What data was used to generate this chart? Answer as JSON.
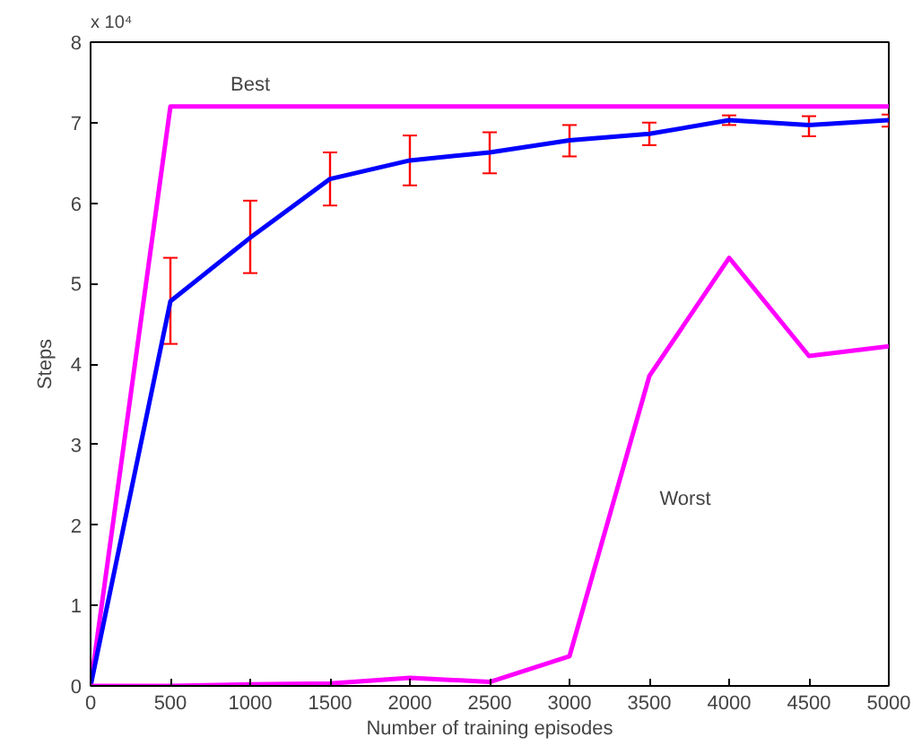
{
  "chart_data": {
    "type": "line",
    "xlabel": "Number of training episodes",
    "ylabel": "Steps",
    "x": [
      0,
      500,
      1000,
      1500,
      2000,
      2500,
      3000,
      3500,
      4000,
      4500,
      5000
    ],
    "series": [
      {
        "name": "Best",
        "color": "#ff00ff",
        "values": [
          0,
          7.2,
          7.2,
          7.2,
          7.2,
          7.2,
          7.2,
          7.2,
          7.2,
          7.2,
          7.2
        ]
      },
      {
        "color": "#0000ff",
        "values": [
          0,
          4.78,
          5.57,
          6.3,
          6.53,
          6.63,
          6.78,
          6.86,
          7.03,
          6.97,
          7.03
        ],
        "errors": [
          null,
          [
            4.25,
            5.32
          ],
          [
            5.13,
            6.03
          ],
          [
            5.97,
            6.63
          ],
          [
            6.22,
            6.84
          ],
          [
            6.37,
            6.88
          ],
          [
            6.58,
            6.97
          ],
          [
            6.72,
            7.0
          ],
          [
            6.97,
            7.09
          ],
          [
            6.83,
            7.08
          ],
          [
            6.95,
            7.1
          ]
        ]
      },
      {
        "name": "Worst",
        "color": "#ff00ff",
        "values": [
          0,
          0,
          0.02,
          0.03,
          0.1,
          0.05,
          0.37,
          3.85,
          5.32,
          4.1,
          4.22
        ]
      }
    ],
    "annotations": [
      "x 10⁴"
    ],
    "xlim": [
      0,
      5000
    ],
    "xticks": [
      0,
      500,
      1000,
      1500,
      2000,
      2500,
      3000,
      3500,
      4000,
      4500,
      5000
    ],
    "ylim": [
      0,
      8
    ],
    "yticks": [
      0,
      1,
      2,
      3,
      4,
      5,
      6,
      7,
      8
    ],
    "grid": false,
    "marker": "none",
    "line_style": "solid"
  }
}
